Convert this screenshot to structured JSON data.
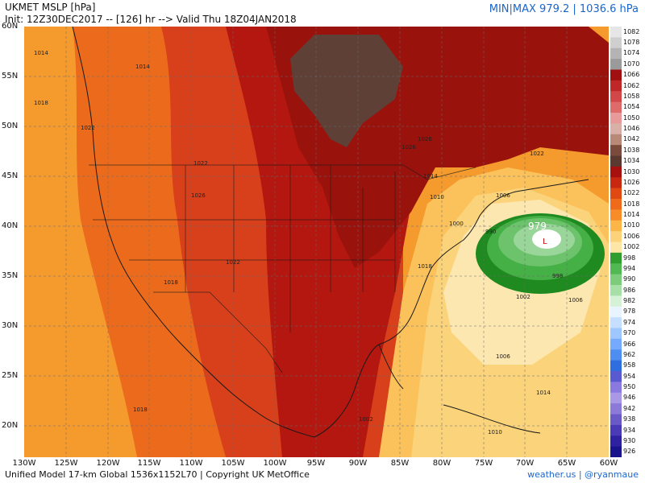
{
  "header": {
    "title": "UKMET MSLP [hPa]",
    "init": "Init: 12Z30DEC2017 -- [126] hr --> Valid Thu 18Z04JAN2018",
    "minmax": "MIN|MAX 979.2 | 1036.6 hPa"
  },
  "footer": {
    "left": "Unified Model 17-km Global 1536x1152L70 | Copyright UK MetOffice",
    "right": "weather.us | @ryanmaue"
  },
  "axes": {
    "lat_labels": [
      "60N",
      "55N",
      "50N",
      "45N",
      "40N",
      "35N",
      "30N",
      "25N",
      "20N"
    ],
    "lon_labels": [
      "130W",
      "125W",
      "120W",
      "115W",
      "110W",
      "105W",
      "100W",
      "95W",
      "90W",
      "85W",
      "80W",
      "75W",
      "70W",
      "65W",
      "60W"
    ]
  },
  "colorbar": {
    "labels": [
      "1082",
      "1078",
      "1074",
      "1070",
      "1066",
      "1062",
      "1058",
      "1054",
      "1050",
      "1046",
      "1042",
      "1038",
      "1034",
      "1030",
      "1026",
      "1022",
      "1018",
      "1014",
      "1010",
      "1006",
      "1002",
      "998",
      "994",
      "990",
      "986",
      "982",
      "978",
      "974",
      "970",
      "966",
      "962",
      "958",
      "954",
      "950",
      "946",
      "942",
      "938",
      "934",
      "930",
      "926"
    ],
    "colors": [
      "#e6e6e6",
      "#cfcfcf",
      "#b4b4b4",
      "#9a9a9a",
      "#a01010",
      "#c02828",
      "#d24848",
      "#de6a6a",
      "#e89a9a",
      "#d8b0a8",
      "#b88878",
      "#7a4a3c",
      "#5a3a30",
      "#a81010",
      "#c82810",
      "#e04a12",
      "#f06a1c",
      "#f88c28",
      "#fcb648",
      "#fcd27a",
      "#fde6a6",
      "#2f9e2f",
      "#52b852",
      "#7ccc7c",
      "#a6e0a6",
      "#d6f2d6",
      "#e8f4ff",
      "#c6deff",
      "#9ec6ff",
      "#76aaff",
      "#4e8ef0",
      "#2e6ede",
      "#5a5ad0",
      "#8a7ae0",
      "#a898e6",
      "#8c7ad8",
      "#6a5ac8",
      "#4a3ab6",
      "#2e22a0",
      "#1a148c"
    ]
  },
  "map": {
    "low_label": "979",
    "low_marker": "L",
    "isobar_labels": [
      "1014",
      "1014",
      "1018",
      "1022",
      "1022",
      "1026",
      "1026",
      "1022",
      "1018",
      "1018",
      "1018",
      "1014",
      "1010",
      "1006",
      "1006",
      "1002",
      "1000",
      "990",
      "998",
      "1002",
      "1006",
      "1010",
      "1014",
      "1022",
      "1026"
    ],
    "palette": {
      "orange": "#f59a2c",
      "orange_red": "#ec6a1c",
      "red": "#d7401a",
      "dark_red": "#b3170f",
      "brown": "#5e4037",
      "yellow": "#fbd37a",
      "pale": "#fde7b0",
      "green_dark": "#1f8a1f",
      "green": "#45b045",
      "green_light": "#9ad69a",
      "white": "#ffffff"
    }
  }
}
